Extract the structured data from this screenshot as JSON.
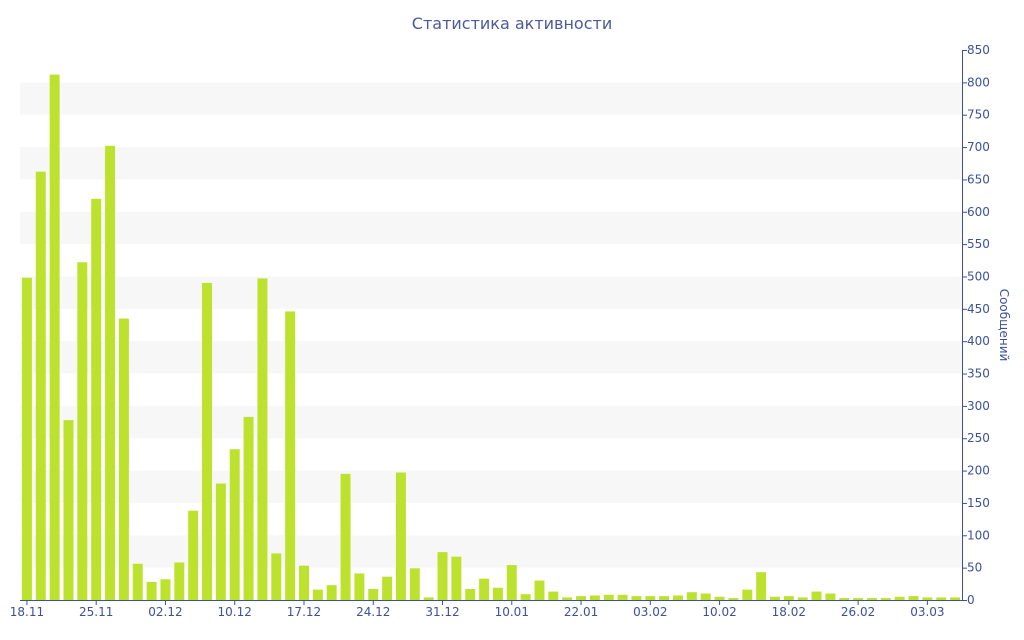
{
  "chart_data": {
    "type": "bar",
    "title": "Статистика активности",
    "xlabel": "",
    "ylabel": "Сообщений",
    "ylim": [
      0,
      850
    ],
    "y_ticks": [
      0,
      50,
      100,
      150,
      200,
      250,
      300,
      350,
      400,
      450,
      500,
      550,
      600,
      650,
      700,
      750,
      800,
      850
    ],
    "y_axis_side": "right",
    "grid": "alternating horizontal bands",
    "legend": "none",
    "x_tick_labels": [
      {
        "label": "18.11",
        "index": 0
      },
      {
        "label": "25.11",
        "index": 5
      },
      {
        "label": "02.12",
        "index": 10
      },
      {
        "label": "10.12",
        "index": 15
      },
      {
        "label": "17.12",
        "index": 20
      },
      {
        "label": "24.12",
        "index": 25
      },
      {
        "label": "31.12",
        "index": 30
      },
      {
        "label": "10.01",
        "index": 35
      },
      {
        "label": "22.01",
        "index": 40
      },
      {
        "label": "03.02",
        "index": 45
      },
      {
        "label": "10.02",
        "index": 50
      },
      {
        "label": "18.02",
        "index": 55
      },
      {
        "label": "26.02",
        "index": 60
      },
      {
        "label": "03.03",
        "index": 65
      }
    ],
    "values": [
      498,
      662,
      812,
      278,
      522,
      620,
      702,
      435,
      56,
      28,
      32,
      58,
      138,
      490,
      180,
      233,
      283,
      497,
      72,
      446,
      53,
      16,
      23,
      195,
      41,
      17,
      36,
      197,
      49,
      4,
      74,
      67,
      17,
      33,
      19,
      54,
      9,
      30,
      13,
      4,
      6,
      7,
      8,
      8,
      6,
      6,
      6,
      7,
      12,
      10,
      5,
      3,
      16,
      43,
      5,
      6,
      4,
      13,
      10,
      3,
      3,
      3,
      3,
      5,
      6,
      4,
      4,
      4
    ]
  },
  "colors": {
    "bar": "#bde22e",
    "band": "#f7f7f7",
    "axis": "#3c5199",
    "title": "#4a5a9a"
  }
}
